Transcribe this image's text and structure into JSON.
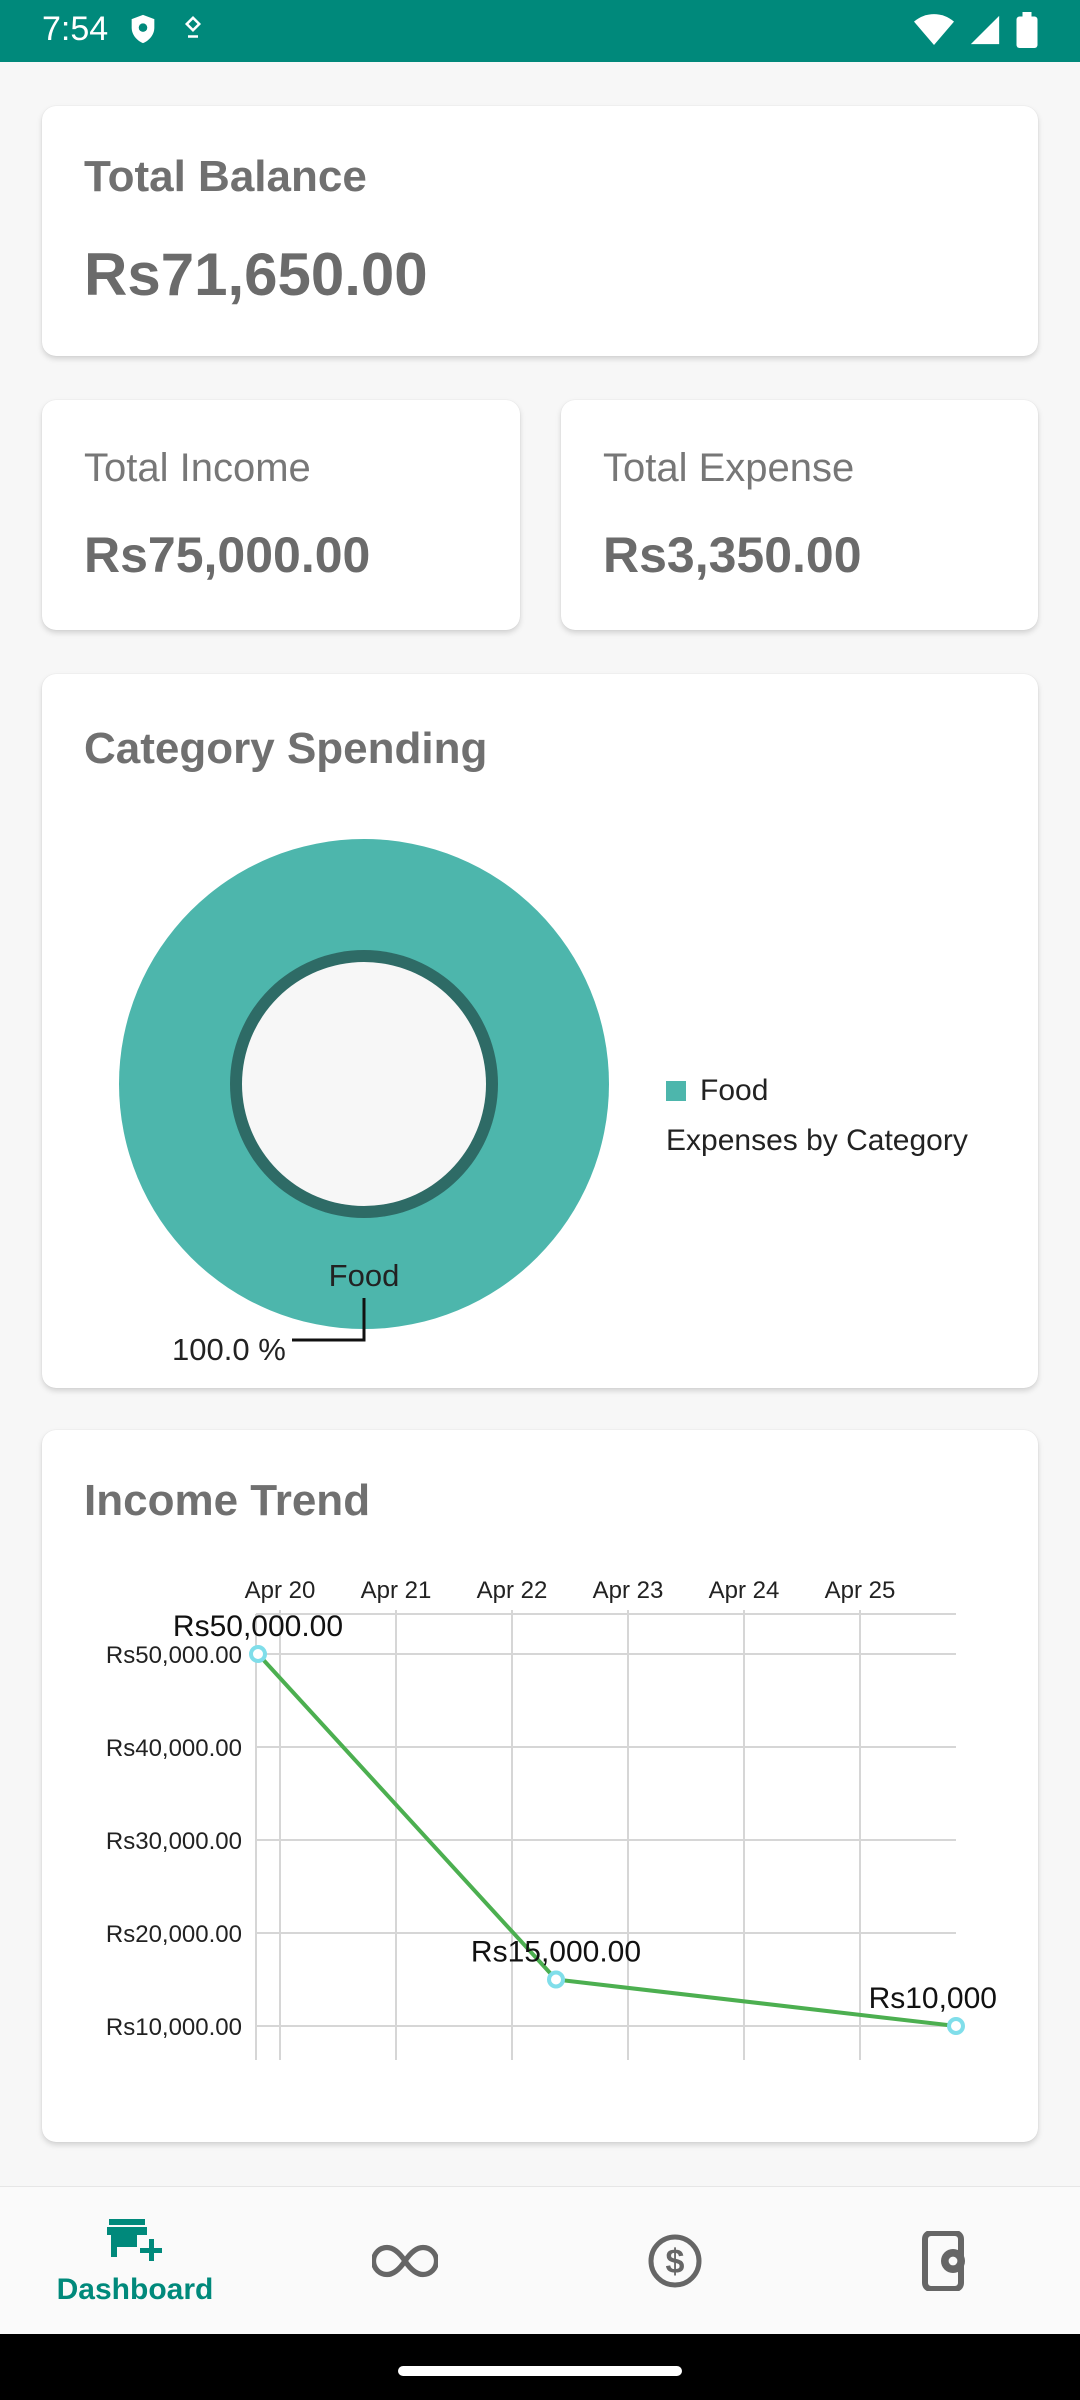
{
  "status_bar": {
    "time": "7:54",
    "icons": [
      "shield-icon",
      "location-pin-icon",
      "wifi-icon",
      "signal-icon",
      "battery-icon"
    ]
  },
  "balance": {
    "title": "Total Balance",
    "amount": "Rs71,650.00"
  },
  "income": {
    "label": "Total Income",
    "amount": "Rs75,000.00"
  },
  "expense": {
    "label": "Total Expense",
    "amount": "Rs3,350.00"
  },
  "category": {
    "title": "Category Spending",
    "slice_label": "Food",
    "slice_value": "100.0 %",
    "legend": {
      "item": "Food",
      "description": "Expenses by Category"
    }
  },
  "trend": {
    "title": "Income Trend"
  },
  "chart_data": [
    {
      "type": "pie",
      "labels": [
        "Food"
      ],
      "values": [
        100.0
      ],
      "legend": [
        "Food"
      ],
      "description": "Expenses by Category",
      "colors": [
        "#4db6ac"
      ]
    },
    {
      "type": "line",
      "x": [
        "Apr 20",
        "Apr 22",
        "Apr 25"
      ],
      "x_ticks": [
        "Apr 20",
        "Apr 21",
        "Apr 22",
        "Apr 23",
        "Apr 24",
        "Apr 25"
      ],
      "y_ticks": [
        "Rs50,000.00",
        "Rs40,000.00",
        "Rs30,000.00",
        "Rs20,000.00",
        "Rs10,000.00"
      ],
      "series": [
        {
          "values": [
            50000,
            15000,
            10000
          ],
          "data_labels": [
            "Rs50,000.00",
            "Rs15,000.00",
            "Rs10,000"
          ]
        }
      ],
      "grid": true,
      "colors": {
        "line": "#4caf50",
        "point": "#80deea"
      }
    }
  ],
  "bottom_nav": {
    "active_label": "Dashboard",
    "items": [
      "store-add-icon",
      "infinity-icon",
      "dollar-circle-icon",
      "phone-settings-icon"
    ]
  },
  "colors": {
    "accent": "#00897b",
    "donut": "#4db6ac",
    "donut_ring": "#2e6b66"
  }
}
